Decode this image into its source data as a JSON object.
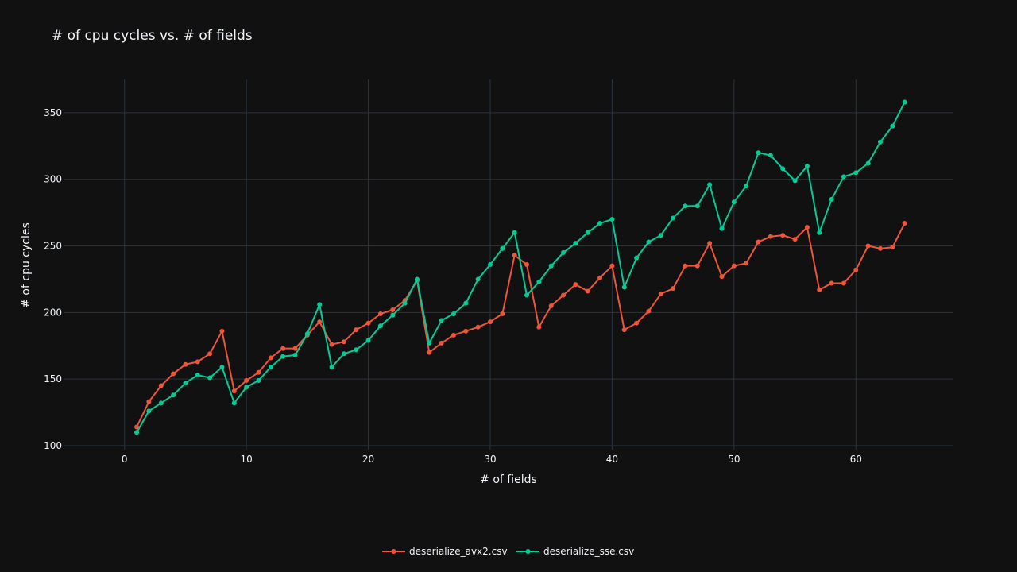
{
  "chart_data": {
    "type": "line",
    "title": "# of cpu cycles vs. # of fields",
    "xlabel": "# of fields",
    "ylabel": "# of cpu cycles",
    "xlim": [
      -5,
      68
    ],
    "ylim": [
      97,
      375
    ],
    "xticks": [
      0,
      10,
      20,
      30,
      40,
      50,
      60
    ],
    "yticks": [
      100,
      150,
      200,
      250,
      300,
      350
    ],
    "grid": true,
    "legend_position": "bottom-center",
    "background": "#111111",
    "grid_color": "#283442",
    "x": [
      1,
      2,
      3,
      4,
      5,
      6,
      7,
      8,
      9,
      10,
      11,
      12,
      13,
      14,
      15,
      16,
      17,
      18,
      19,
      20,
      21,
      22,
      23,
      24,
      25,
      26,
      27,
      28,
      29,
      30,
      31,
      32,
      33,
      34,
      35,
      36,
      37,
      38,
      39,
      40,
      41,
      42,
      43,
      44,
      45,
      46,
      47,
      48,
      49,
      50,
      51,
      52,
      53,
      54,
      55,
      56,
      57,
      58,
      59,
      60,
      61,
      62,
      63,
      64
    ],
    "series": [
      {
        "name": "deserialize_avx2.csv",
        "color": "#ef553b",
        "values": [
          114,
          133,
          145,
          154,
          161,
          163,
          169,
          186,
          141,
          149,
          155,
          166,
          173,
          173,
          183,
          193,
          176,
          178,
          187,
          192,
          199,
          202,
          209,
          224,
          170,
          177,
          183,
          186,
          189,
          193,
          199,
          243,
          236,
          189,
          205,
          213,
          221,
          216,
          226,
          235,
          187,
          192,
          201,
          214,
          218,
          235,
          235,
          252,
          227,
          235,
          237,
          253,
          257,
          258,
          255,
          264,
          217,
          222,
          222,
          232,
          250,
          248,
          249,
          267
        ]
      },
      {
        "name": "deserialize_sse.csv",
        "color": "#00cc96",
        "values": [
          110,
          126,
          132,
          138,
          147,
          153,
          151,
          159,
          132,
          144,
          149,
          159,
          167,
          168,
          184,
          206,
          159,
          169,
          172,
          179,
          190,
          198,
          207,
          225,
          177,
          194,
          199,
          207,
          225,
          236,
          248,
          260,
          213,
          223,
          235,
          245,
          252,
          260,
          267,
          270,
          219,
          241,
          253,
          258,
          271,
          280,
          280,
          296,
          263,
          283,
          295,
          320,
          318,
          308,
          299,
          310,
          260,
          285,
          302,
          305,
          312,
          328,
          340,
          358
        ]
      }
    ]
  }
}
